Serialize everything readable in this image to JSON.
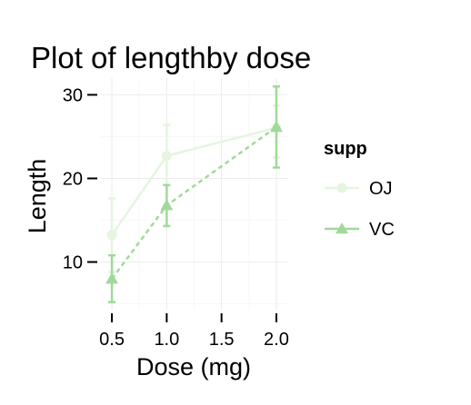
{
  "chart_data": {
    "type": "line",
    "title": "Plot of lengthby dose",
    "xlabel": "Dose (mg)",
    "ylabel": "Length",
    "x": [
      0.5,
      1.0,
      2.0
    ],
    "xticks": [
      0.5,
      1.0,
      1.5,
      2.0
    ],
    "xtick_labels": [
      "0.5",
      "1.0",
      "1.5",
      "2.0"
    ],
    "yticks": [
      10,
      20,
      30
    ],
    "ytick_labels": [
      "10",
      "20",
      "30"
    ],
    "xlim": [
      0.4,
      2.1
    ],
    "ylim": [
      4.3,
      32
    ],
    "grid": true,
    "legend_title": "supp",
    "legend_position": "right",
    "series": [
      {
        "name": "OJ",
        "values": [
          13.23,
          22.7,
          26.06
        ],
        "error_low": [
          8.8,
          19.2,
          22.5
        ],
        "error_high": [
          17.6,
          26.4,
          28.7
        ],
        "color": "#e5f5e0",
        "line_style": "solid",
        "marker": "circle"
      },
      {
        "name": "VC",
        "values": [
          7.98,
          16.77,
          26.14
        ],
        "error_low": [
          5.2,
          14.3,
          21.3
        ],
        "error_high": [
          10.8,
          19.2,
          31.0
        ],
        "color": "#a1d99b",
        "line_style": "dashed",
        "marker": "triangle"
      }
    ]
  }
}
